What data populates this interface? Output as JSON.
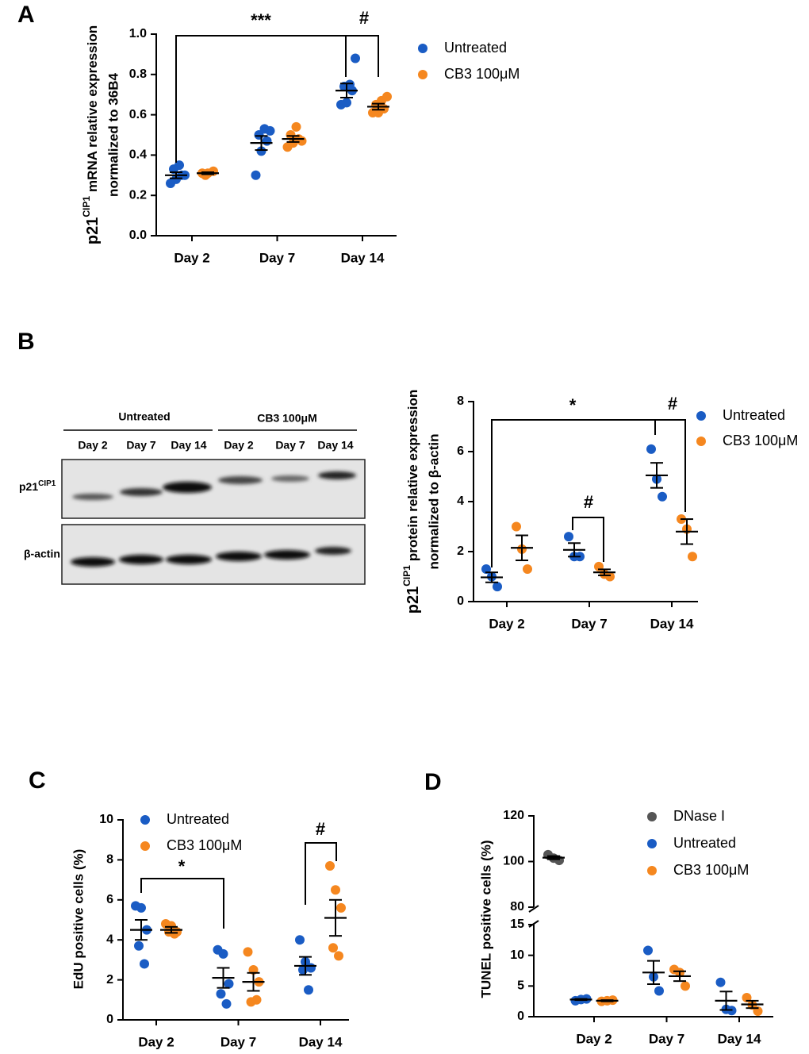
{
  "panel_labels": [
    "A",
    "B",
    "C",
    "D"
  ],
  "blot": {
    "groups": [
      "Untreated",
      "CB3 100μM"
    ],
    "lanes": [
      "Day 2",
      "Day 7",
      "Day 14",
      "Day 2",
      "Day 7",
      "Day 14"
    ],
    "row1": {
      "gene": "p21",
      "superscript": "CIP1"
    },
    "row2": "β-actin"
  },
  "chart_data": [
    {
      "type": "dot",
      "categories": [
        "Day 2",
        "Day 7",
        "Day 14"
      ],
      "ylabel": {
        "gene": "p21",
        "superscript": "CIP1",
        "line1": "mRNA relative expression",
        "line2": "normalized to 36B4"
      },
      "ylim": [
        0,
        1
      ],
      "yticks": [
        {
          "value": 0,
          "label": "0.0"
        },
        0.2,
        0.4,
        0.6,
        0.8,
        {
          "value": 1,
          "label": "1.0"
        }
      ],
      "series": [
        {
          "name": "Untreated",
          "color": "#1a5cc4",
          "points": [
            [
              0.26,
              0.28,
              0.3,
              0.33,
              0.35,
              0.3
            ],
            [
              0.3,
              0.42,
              0.47,
              0.5,
              0.53,
              0.52
            ],
            [
              0.65,
              0.66,
              0.72,
              0.74,
              0.75,
              0.88
            ]
          ],
          "mean": [
            0.3,
            0.46,
            0.72
          ],
          "sem": [
            0.015,
            0.035,
            0.035
          ]
        },
        {
          "name": "CB3 100μM",
          "color": "#f5871f",
          "points": [
            [
              0.31,
              0.31,
              0.32,
              0.3
            ],
            [
              0.44,
              0.46,
              0.48,
              0.5,
              0.54,
              0.47
            ],
            [
              0.61,
              0.61,
              0.63,
              0.65,
              0.67,
              0.69
            ]
          ],
          "mean": [
            0.31,
            0.48,
            0.64
          ],
          "sem": [
            0.005,
            0.015,
            0.015
          ]
        }
      ],
      "annotations": [
        "***",
        "#"
      ]
    },
    {
      "type": "dot",
      "categories": [
        "Day 2",
        "Day 7",
        "Day 14"
      ],
      "ylabel": {
        "gene": "p21",
        "superscript": "CIP1",
        "line1": "protein relative expression",
        "line2": "normalized to β-actin"
      },
      "ylim": [
        0,
        8
      ],
      "yticks": [
        0,
        2,
        4,
        6,
        8
      ],
      "series": [
        {
          "name": "Untreated",
          "color": "#1a5cc4",
          "points": [
            [
              1.3,
              1.0,
              0.6
            ],
            [
              2.6,
              1.8,
              1.8
            ],
            [
              6.1,
              4.9,
              4.2
            ]
          ],
          "mean": [
            0.97,
            2.07,
            5.05
          ],
          "sem": [
            0.2,
            0.27,
            0.5
          ]
        },
        {
          "name": "CB3 100μM",
          "color": "#f5871f",
          "points": [
            [
              3.0,
              2.1,
              1.3
            ],
            [
              1.4,
              1.1,
              1.0
            ],
            [
              3.3,
              2.9,
              1.8
            ]
          ],
          "mean": [
            2.15,
            1.17,
            2.8
          ],
          "sem": [
            0.5,
            0.12,
            0.5
          ]
        }
      ],
      "annotations": [
        "*",
        "#",
        "#"
      ]
    },
    {
      "type": "dot",
      "categories": [
        "Day 2",
        "Day 7",
        "Day 14"
      ],
      "ylabel": "EdU positive cells (%)",
      "ylim": [
        0,
        10
      ],
      "yticks": [
        0,
        2,
        4,
        6,
        8,
        10
      ],
      "series": [
        {
          "name": "Untreated",
          "color": "#1a5cc4",
          "points": [
            [
              5.7,
              5.6,
              4.5,
              3.7,
              2.8
            ],
            [
              3.5,
              3.3,
              1.8,
              1.3,
              0.8
            ],
            [
              4.0,
              2.9,
              2.6,
              2.5,
              1.5
            ]
          ],
          "mean": [
            4.5,
            2.1,
            2.7
          ],
          "sem": [
            0.5,
            0.5,
            0.45
          ]
        },
        {
          "name": "CB3 100μM",
          "color": "#f5871f",
          "points": [
            [
              4.8,
              4.7,
              4.4,
              4.4,
              4.3
            ],
            [
              3.4,
              2.5,
              1.9,
              0.9,
              1.0
            ],
            [
              7.7,
              6.5,
              5.6,
              3.6,
              3.2
            ]
          ],
          "mean": [
            4.5,
            1.9,
            5.1
          ],
          "sem": [
            0.15,
            0.45,
            0.9
          ]
        }
      ],
      "annotations": [
        "*",
        "#"
      ]
    },
    {
      "type": "dot",
      "categories": [
        "Day 2",
        "Day 7",
        "Day 14"
      ],
      "ylabel": "TUNEL positive cells (%)",
      "ylim": [
        0,
        15
      ],
      "yticks": [
        0,
        5,
        10,
        15
      ],
      "ylim_upper": [
        80,
        120
      ],
      "yticks_upper": [
        80,
        100,
        120
      ],
      "series": [
        {
          "name": "DNase I",
          "color": "#555555",
          "points": [
            [
              103,
              101.5,
              100.5
            ],
            [],
            []
          ],
          "mean": [
            101.7,
            null,
            null
          ],
          "sem": [
            0.7,
            null,
            null
          ]
        },
        {
          "name": "Untreated",
          "color": "#1a5cc4",
          "points": [
            [
              2.6,
              2.8,
              2.9
            ],
            [
              10.8,
              6.5,
              4.2
            ],
            [
              5.6,
              1.2,
              1.0
            ]
          ],
          "mean": [
            2.8,
            7.2,
            2.6
          ],
          "sem": [
            0.1,
            1.9,
            1.5
          ]
        },
        {
          "name": "CB3 100μM",
          "color": "#f5871f",
          "points": [
            [
              2.5,
              2.6,
              2.7
            ],
            [
              7.7,
              7.2,
              5.0
            ],
            [
              3.1,
              1.9,
              0.9
            ]
          ],
          "mean": [
            2.6,
            6.6,
            2.0
          ],
          "sem": [
            0.1,
            0.8,
            0.6
          ]
        }
      ],
      "annotations": []
    }
  ]
}
